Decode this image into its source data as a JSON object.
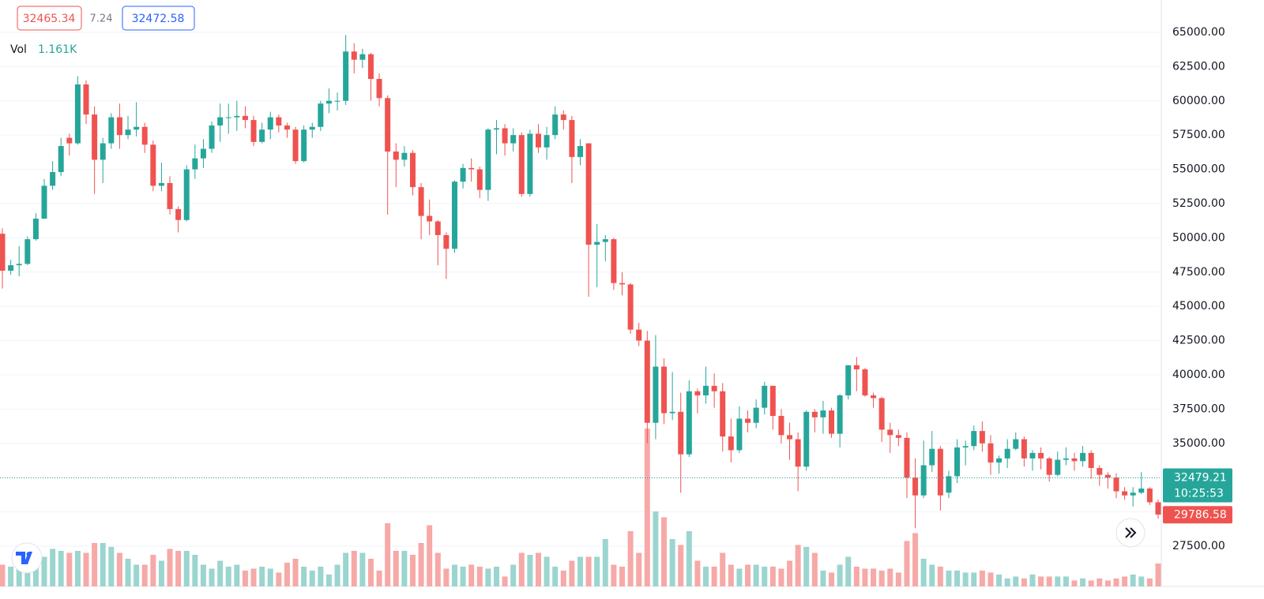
{
  "chart_data": {
    "type": "candlestick",
    "open": [
      50300,
      47600,
      48000,
      48100,
      49900,
      51400,
      53800,
      54800,
      57300,
      56900,
      61200,
      59000,
      55700,
      56900,
      58800,
      57500,
      57900,
      58100,
      56800,
      53800,
      54000,
      52100,
      51300,
      55000,
      55800,
      56500,
      58200,
      58800,
      58800,
      58900,
      58600,
      57000,
      57900,
      58800,
      58200,
      57900,
      55600,
      57900,
      58100,
      59800,
      60000,
      60000,
      63600,
      63000,
      63400,
      61600,
      60200,
      56300,
      55700,
      56200,
      53700,
      51600,
      51200,
      50200,
      49200,
      54100,
      55100,
      55000,
      53500,
      57900,
      58000,
      56900,
      57500,
      53200,
      57600,
      56600,
      57500,
      59000,
      58600,
      55900,
      56900,
      49500,
      49700,
      49900,
      46700,
      46600,
      43300,
      42500,
      36500,
      40600,
      37200,
      37300,
      34200,
      38800,
      38500,
      39200,
      38800,
      35500,
      34500,
      36800,
      36500,
      37600,
      39200,
      37000,
      35600,
      35300,
      33300,
      37300,
      36900,
      37400,
      35700,
      38500,
      40700,
      40400,
      38500,
      38300,
      36000,
      35600,
      35400,
      32500,
      31200,
      33400,
      34600,
      31400,
      32600,
      34700,
      34800,
      35900,
      35000,
      33600,
      33900,
      34600,
      35300,
      33900,
      34300,
      33900,
      32700,
      33800,
      33900,
      33700,
      34300,
      33200,
      32700,
      32500,
      31500,
      31200,
      31400,
      31700,
      30700
    ],
    "high": [
      50700,
      48400,
      49400,
      50100,
      51800,
      54300,
      55600,
      57300,
      57600,
      61800,
      61500,
      59600,
      57300,
      59100,
      59800,
      58900,
      59900,
      58400,
      57100,
      55500,
      54500,
      52300,
      55300,
      56800,
      57200,
      58500,
      59800,
      59800,
      60000,
      59600,
      58900,
      58400,
      59200,
      59000,
      58400,
      58100,
      58200,
      58400,
      60000,
      60900,
      60600,
      64800,
      64200,
      63800,
      63500,
      62000,
      60400,
      56900,
      56700,
      56400,
      54000,
      52800,
      51300,
      50400,
      54200,
      55400,
      55800,
      55200,
      58000,
      58600,
      58300,
      58000,
      57700,
      57900,
      58300,
      58100,
      59600,
      59300,
      58900,
      57200,
      56900,
      51000,
      50200,
      50000,
      47500,
      46700,
      43800,
      43200,
      42900,
      41200,
      40200,
      38700,
      39600,
      39000,
      40600,
      40100,
      39400,
      36800,
      37700,
      37400,
      38200,
      39500,
      39200,
      37500,
      36500,
      35800,
      37400,
      37500,
      38100,
      37600,
      38600,
      40700,
      41300,
      40500,
      38700,
      38400,
      36500,
      36000,
      35800,
      33900,
      35200,
      35900,
      34800,
      33000,
      35300,
      35200,
      36300,
      36600,
      35600,
      34100,
      35300,
      35800,
      35500,
      34500,
      34700,
      34000,
      34400,
      34700,
      34300,
      34800,
      34500,
      33400,
      32900,
      32800,
      31800,
      31800,
      32900,
      31800,
      30900
    ],
    "low": [
      46300,
      47300,
      47200,
      48000,
      49800,
      51400,
      53500,
      54500,
      56000,
      56800,
      58300,
      53200,
      54000,
      56500,
      56500,
      57200,
      57400,
      56200,
      53400,
      53400,
      51700,
      50400,
      51200,
      54300,
      55100,
      56200,
      57000,
      57600,
      57800,
      58000,
      56700,
      56900,
      57200,
      57700,
      57300,
      55400,
      55500,
      57300,
      57800,
      59100,
      59300,
      59700,
      62000,
      62400,
      60000,
      59600,
      51700,
      53700,
      55200,
      53100,
      49900,
      50200,
      48000,
      47000,
      48900,
      53600,
      54100,
      52900,
      52700,
      56100,
      56000,
      56300,
      53000,
      53000,
      56200,
      55700,
      57200,
      57900,
      54000,
      55300,
      45700,
      46400,
      48300,
      46200,
      45800,
      43000,
      42100,
      35000,
      35300,
      36400,
      36700,
      31400,
      34000,
      37200,
      37900,
      37600,
      34400,
      33600,
      34300,
      35800,
      36100,
      37100,
      36000,
      35000,
      33800,
      31500,
      33000,
      35800,
      35700,
      35400,
      34700,
      38200,
      38800,
      38400,
      37600,
      35100,
      34300,
      34800,
      31000,
      28800,
      31000,
      32900,
      30100,
      31000,
      32100,
      33400,
      34500,
      34400,
      32700,
      32800,
      33200,
      34500,
      33300,
      33000,
      33100,
      32200,
      32600,
      33400,
      33000,
      33300,
      32400,
      31900,
      31700,
      31000,
      30900,
      30400,
      31300,
      30500,
      29500
    ],
    "close": [
      47600,
      48000,
      48100,
      49900,
      51400,
      53800,
      54800,
      56700,
      56900,
      61200,
      59000,
      55700,
      56900,
      58800,
      57500,
      57900,
      58100,
      56800,
      53800,
      54000,
      52100,
      51300,
      55000,
      55800,
      56500,
      58200,
      58800,
      58800,
      58900,
      58600,
      57000,
      57900,
      58800,
      58200,
      57900,
      55600,
      57900,
      58100,
      59800,
      60000,
      60000,
      63600,
      63000,
      63400,
      61600,
      60200,
      56300,
      55700,
      56200,
      53700,
      51600,
      51200,
      50200,
      49200,
      54100,
      55100,
      55000,
      53500,
      57900,
      58000,
      56900,
      57500,
      53200,
      57600,
      56600,
      57500,
      59000,
      58600,
      55900,
      56700,
      49500,
      49700,
      49900,
      46700,
      46600,
      43300,
      42500,
      36500,
      40600,
      37200,
      37300,
      34200,
      38800,
      38500,
      39200,
      38800,
      35500,
      34500,
      36800,
      36500,
      37600,
      39200,
      37000,
      35600,
      35300,
      33300,
      37300,
      36900,
      37400,
      35700,
      38500,
      40700,
      40400,
      38500,
      38300,
      36000,
      35600,
      35400,
      32500,
      31200,
      33400,
      34600,
      31200,
      32600,
      34700,
      34800,
      35900,
      35000,
      33600,
      33900,
      34600,
      35300,
      33900,
      34300,
      33900,
      32700,
      33800,
      33900,
      33700,
      34300,
      33200,
      32700,
      32500,
      31500,
      31200,
      31400,
      31700,
      30700,
      29800
    ],
    "volume": [
      1100,
      1000,
      1300,
      1300,
      1200,
      1500,
      1900,
      1800,
      1700,
      1800,
      1700,
      2200,
      2200,
      2000,
      1700,
      1400,
      1100,
      1100,
      1600,
      1300,
      1900,
      1800,
      1800,
      1600,
      1100,
      900,
      1300,
      1000,
      1100,
      800,
      900,
      1000,
      900,
      700,
      1200,
      1400,
      1000,
      800,
      1000,
      600,
      1100,
      1700,
      1800,
      1700,
      1400,
      800,
      3200,
      1800,
      1800,
      1600,
      2200,
      3100,
      1700,
      900,
      1100,
      1000,
      1100,
      1000,
      900,
      1000,
      500,
      1100,
      1700,
      1600,
      1700,
      1500,
      1000,
      800,
      1300,
      1500,
      1500,
      1500,
      2400,
      1100,
      1000,
      2800,
      1700,
      8000,
      3800,
      3500,
      2400,
      2100,
      2800,
      1300,
      1000,
      1000,
      1700,
      1100,
      900,
      1100,
      1100,
      1000,
      1000,
      900,
      1300,
      2100,
      2000,
      1700,
      800,
      700,
      1100,
      1500,
      1000,
      900,
      900,
      800,
      900,
      700,
      2300,
      2700,
      1400,
      1100,
      1000,
      800,
      800,
      700,
      700,
      800,
      700,
      600,
      400,
      500,
      400,
      600,
      500,
      500,
      500,
      500,
      300,
      400,
      300,
      400,
      300,
      400,
      500,
      600,
      500,
      400,
      1161
    ],
    "vlim": [
      0,
      8400
    ],
    "ylim": [
      24560,
      67360
    ],
    "yticks": [
      {
        "value": 27500,
        "label": "27500.00"
      },
      {
        "value": 30000,
        "label": "30000.00"
      },
      {
        "value": 32500,
        "label": "32500.00"
      },
      {
        "value": 35000,
        "label": "35000.00"
      },
      {
        "value": 37500,
        "label": "37500.00"
      },
      {
        "value": 40000,
        "label": "40000.00"
      },
      {
        "value": 42500,
        "label": "42500.00"
      },
      {
        "value": 45000,
        "label": "45000.00"
      },
      {
        "value": 47500,
        "label": "47500.00"
      },
      {
        "value": 50000,
        "label": "50000.00"
      },
      {
        "value": 52500,
        "label": "52500.00"
      },
      {
        "value": 55000,
        "label": "55000.00"
      },
      {
        "value": 57500,
        "label": "57500.00"
      },
      {
        "value": 60000,
        "label": "60000.00"
      },
      {
        "value": 62500,
        "label": "62500.00"
      },
      {
        "value": 65000,
        "label": "65000.00"
      }
    ],
    "grid": true,
    "colors": {
      "up": "#26a69a",
      "down": "#ef5350",
      "up_volume": "#9bd5cf",
      "down_volume": "#f6a9a7"
    },
    "bid": 32465.34,
    "spread": 7.24,
    "ask": 32472.58,
    "volume_name": "Vol",
    "volume_label": "1.161K",
    "last_price": 32479.21,
    "countdown": "10:25:53",
    "low_price": 29786.58
  }
}
